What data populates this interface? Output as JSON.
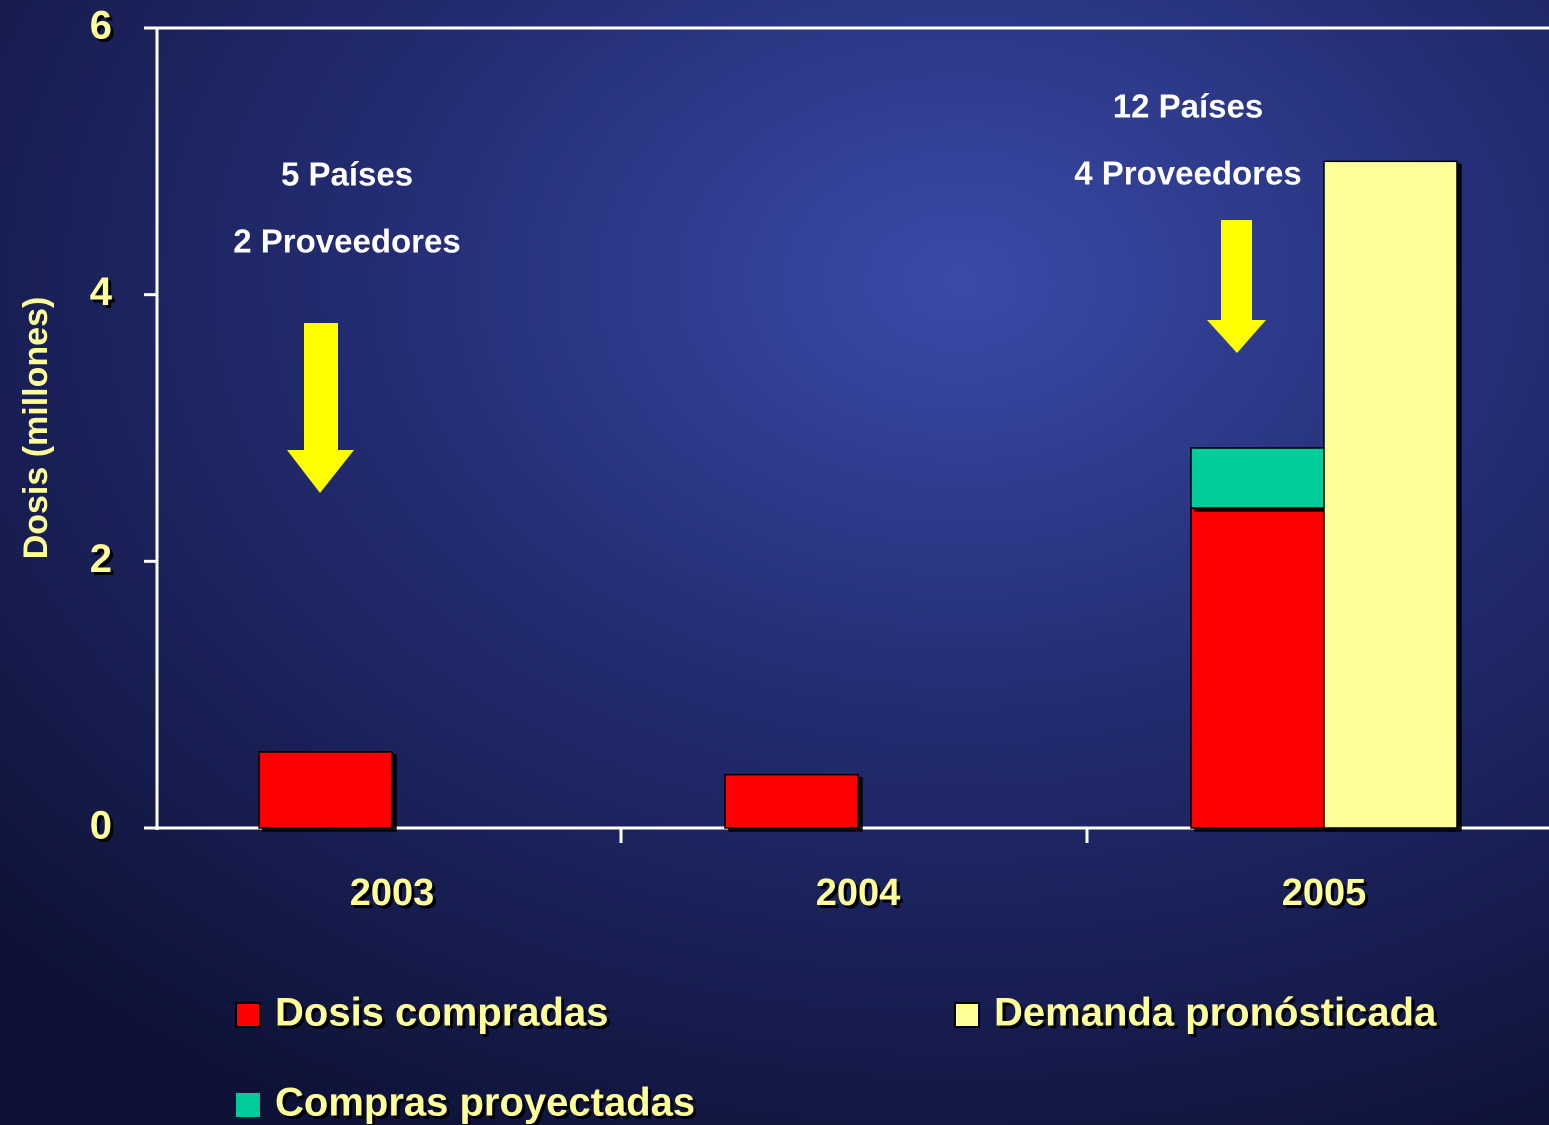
{
  "chart_data": {
    "type": "bar",
    "y_label": "Dosis (millones)",
    "categories": [
      "2003",
      "2004",
      "2005"
    ],
    "series": [
      {
        "name": "Dosis compradas",
        "color": "#ff0000",
        "values": [
          0.57,
          0.4,
          2.4
        ]
      },
      {
        "name": "Compras proyectadas",
        "color": "#00cc99",
        "values": [
          null,
          null,
          0.45
        ]
      },
      {
        "name": "Demanda pronósticada",
        "color": "#ffff99",
        "values": [
          null,
          null,
          5
        ]
      }
    ],
    "ylim": [
      0,
      6
    ],
    "yticks": [
      0,
      2,
      4,
      6
    ],
    "annotations": [
      "5 Países",
      "2 Proveedores",
      "12 Países",
      "4 Proveedores"
    ]
  }
}
